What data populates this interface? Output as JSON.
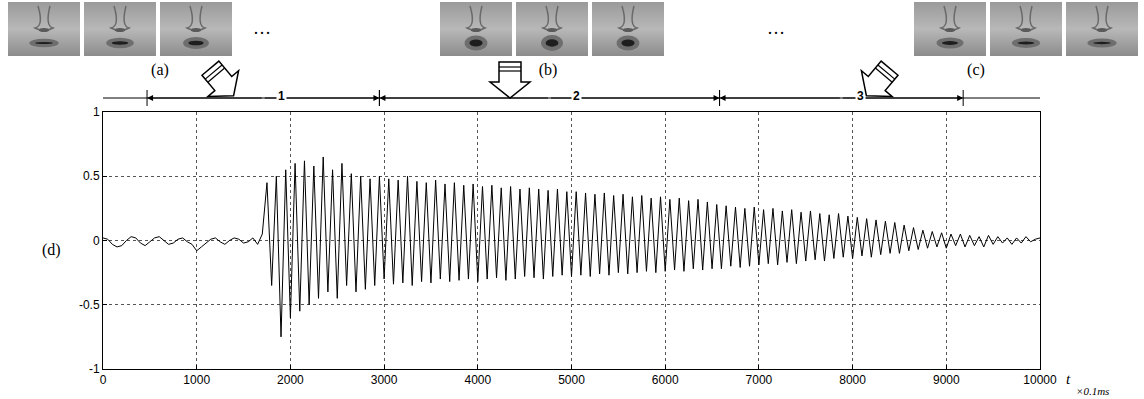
{
  "images": {
    "labels": [
      "(a)",
      "(b)",
      "(c)"
    ],
    "ellipsis": "…"
  },
  "chart_data": {
    "type": "line",
    "panel_label": "(d)",
    "x_label": "t",
    "x_unit": "×0.1ms",
    "color": "#000000",
    "grid": true,
    "xlim": [
      0,
      10000
    ],
    "xticks": [
      0,
      1000,
      2000,
      3000,
      4000,
      5000,
      6000,
      7000,
      8000,
      9000,
      10000
    ],
    "ylim": [
      -1,
      1
    ],
    "yticks": [
      -1,
      -0.5,
      0,
      0.5,
      1
    ],
    "segments": [
      {
        "label": "1",
        "start": 470,
        "end": 2950
      },
      {
        "label": "2",
        "start": 2950,
        "end": 6580
      },
      {
        "label": "3",
        "start": 6580,
        "end": 9180
      }
    ],
    "x": [
      0,
      50,
      100,
      150,
      200,
      250,
      300,
      350,
      400,
      450,
      500,
      550,
      600,
      650,
      700,
      750,
      800,
      850,
      900,
      950,
      1000,
      1050,
      1100,
      1150,
      1200,
      1250,
      1300,
      1350,
      1400,
      1450,
      1500,
      1550,
      1600,
      1650,
      1700,
      1750,
      1800,
      1850,
      1900,
      1950,
      2000,
      2050,
      2100,
      2150,
      2200,
      2250,
      2300,
      2350,
      2400,
      2450,
      2500,
      2550,
      2600,
      2650,
      2700,
      2750,
      2800,
      2850,
      2900,
      2950,
      3000,
      3050,
      3100,
      3150,
      3200,
      3250,
      3300,
      3350,
      3400,
      3450,
      3500,
      3550,
      3600,
      3650,
      3700,
      3750,
      3800,
      3850,
      3900,
      3950,
      4000,
      4050,
      4100,
      4150,
      4200,
      4250,
      4300,
      4350,
      4400,
      4450,
      4500,
      4550,
      4600,
      4650,
      4700,
      4750,
      4800,
      4850,
      4900,
      4950,
      5000,
      5050,
      5100,
      5150,
      5200,
      5250,
      5300,
      5350,
      5400,
      5450,
      5500,
      5550,
      5600,
      5650,
      5700,
      5750,
      5800,
      5850,
      5900,
      5950,
      6000,
      6050,
      6100,
      6150,
      6200,
      6250,
      6300,
      6350,
      6400,
      6450,
      6500,
      6550,
      6600,
      6650,
      6700,
      6750,
      6800,
      6850,
      6900,
      6950,
      7000,
      7050,
      7100,
      7150,
      7200,
      7250,
      7300,
      7350,
      7400,
      7450,
      7500,
      7550,
      7600,
      7650,
      7700,
      7750,
      7800,
      7850,
      7900,
      7950,
      8000,
      8050,
      8100,
      8150,
      8200,
      8250,
      8300,
      8350,
      8400,
      8450,
      8500,
      8550,
      8600,
      8650,
      8700,
      8750,
      8800,
      8850,
      8900,
      8950,
      9000,
      9050,
      9100,
      9150,
      9200,
      9250,
      9300,
      9350,
      9400,
      9450,
      9500,
      9550,
      9600,
      9650,
      9700,
      9750,
      9800,
      9850,
      9900,
      9950,
      10000
    ],
    "values": [
      0.02,
      0.01,
      -0.03,
      -0.05,
      -0.04,
      0.0,
      0.03,
      0.02,
      -0.02,
      -0.04,
      -0.01,
      0.02,
      0.03,
      0.0,
      -0.03,
      -0.02,
      0.01,
      0.02,
      -0.01,
      -0.03,
      -0.08,
      -0.05,
      -0.02,
      0.01,
      0.02,
      -0.01,
      -0.03,
      0.0,
      0.02,
      0.01,
      -0.02,
      -0.01,
      0.02,
      -0.03,
      0.05,
      0.45,
      -0.35,
      0.5,
      -0.75,
      0.55,
      -0.6,
      0.6,
      -0.55,
      0.62,
      -0.5,
      0.58,
      -0.45,
      0.65,
      -0.4,
      0.55,
      -0.45,
      0.6,
      -0.35,
      0.52,
      -0.4,
      0.5,
      -0.38,
      0.48,
      -0.35,
      0.5,
      -0.3,
      0.48,
      -0.34,
      0.47,
      -0.33,
      0.5,
      -0.35,
      0.46,
      -0.32,
      0.45,
      -0.33,
      0.47,
      -0.3,
      0.44,
      -0.32,
      0.45,
      -0.31,
      0.43,
      -0.3,
      0.44,
      -0.32,
      0.42,
      -0.3,
      0.43,
      -0.29,
      0.41,
      -0.31,
      0.42,
      -0.3,
      0.4,
      -0.28,
      0.41,
      -0.29,
      0.4,
      -0.3,
      0.39,
      -0.28,
      0.4,
      -0.27,
      0.38,
      -0.28,
      0.38,
      -0.27,
      0.37,
      -0.28,
      0.36,
      -0.26,
      0.37,
      -0.27,
      0.35,
      -0.25,
      0.36,
      -0.26,
      0.34,
      -0.25,
      0.35,
      -0.24,
      0.33,
      -0.25,
      0.34,
      -0.24,
      0.32,
      -0.23,
      0.33,
      -0.24,
      0.31,
      -0.22,
      0.32,
      -0.23,
      0.3,
      -0.22,
      0.28,
      -0.22,
      0.27,
      -0.2,
      0.26,
      -0.21,
      0.25,
      -0.2,
      0.26,
      -0.19,
      0.24,
      -0.18,
      0.25,
      -0.19,
      0.23,
      -0.17,
      0.24,
      -0.18,
      0.22,
      -0.16,
      0.23,
      -0.15,
      0.21,
      -0.16,
      0.2,
      -0.14,
      0.21,
      -0.13,
      0.19,
      -0.14,
      0.18,
      -0.12,
      0.17,
      -0.13,
      0.16,
      -0.11,
      0.15,
      -0.1,
      0.14,
      -0.1,
      0.12,
      -0.08,
      0.1,
      -0.07,
      0.08,
      -0.06,
      0.07,
      -0.05,
      0.06,
      -0.06,
      0.05,
      -0.04,
      0.05,
      -0.05,
      0.04,
      -0.04,
      0.03,
      -0.05,
      0.04,
      -0.03,
      0.03,
      -0.02,
      0.02,
      -0.03,
      0.02,
      -0.02,
      0.03,
      -0.01,
      0.01,
      0.02
    ]
  }
}
